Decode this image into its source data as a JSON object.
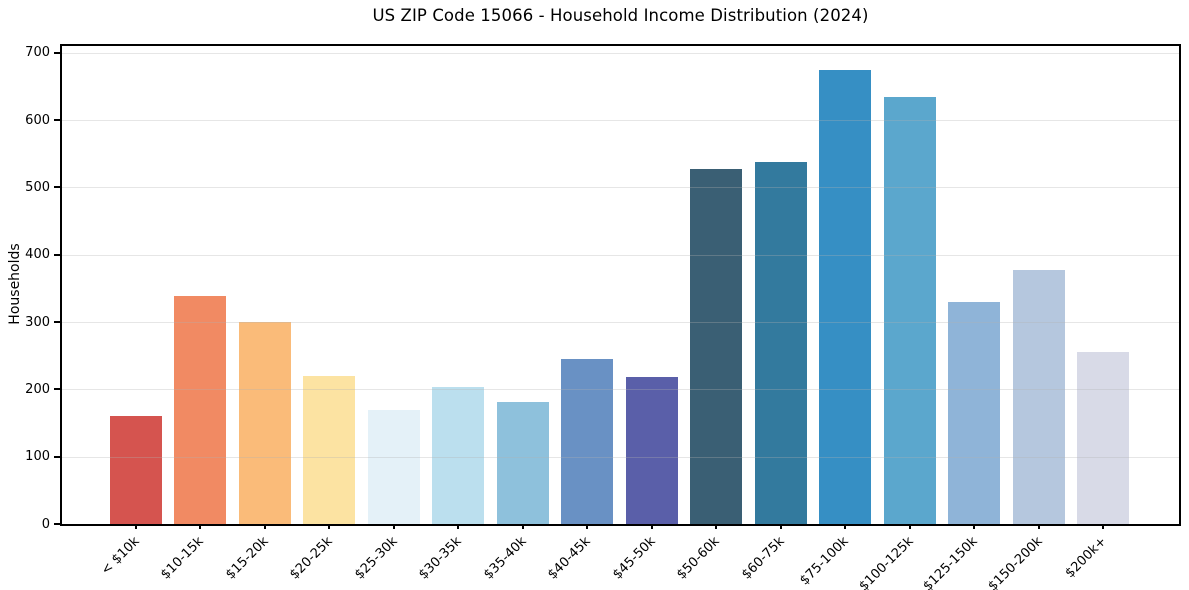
{
  "title": "US ZIP Code 15066 - Household Income Distribution (2024)",
  "chart_data": {
    "type": "bar",
    "title": "US ZIP Code 15066 - Household Income Distribution (2024)",
    "xlabel": "",
    "ylabel": "Households",
    "categories": [
      "< $10k",
      "$10-15k",
      "$15-20k",
      "$20-25k",
      "$25-30k",
      "$30-35k",
      "$35-40k",
      "$40-45k",
      "$45-50k",
      "$50-60k",
      "$60-75k",
      "$75-100k",
      "$100-125k",
      "$125-150k",
      "$150-200k",
      "$200k+"
    ],
    "values": [
      160,
      338,
      300,
      220,
      170,
      204,
      181,
      245,
      218,
      528,
      538,
      675,
      635,
      330,
      378,
      255
    ],
    "bar_colors": [
      "#d5544f",
      "#f18a63",
      "#fabb79",
      "#fce3a2",
      "#e4f1f8",
      "#bbdfee",
      "#8ec1dc",
      "#6991c4",
      "#5a5fa9",
      "#3a5f74",
      "#337a9e",
      "#368fc4",
      "#5ba7cd",
      "#8fb4d8",
      "#b5c7de",
      "#d8dae7"
    ],
    "ylim": [
      0,
      710
    ],
    "yticks": [
      0,
      100,
      200,
      300,
      400,
      500,
      600,
      700
    ],
    "x_tick_rotation_deg": 45,
    "grid": "horizontal gridlines at each y tick, light gray, drawn over bars",
    "legend_position": "none"
  },
  "colors": {
    "background": "#ffffff",
    "spine": "#000000",
    "grid_rgba": "rgba(176,176,176,0.32)",
    "text": "#000000"
  }
}
